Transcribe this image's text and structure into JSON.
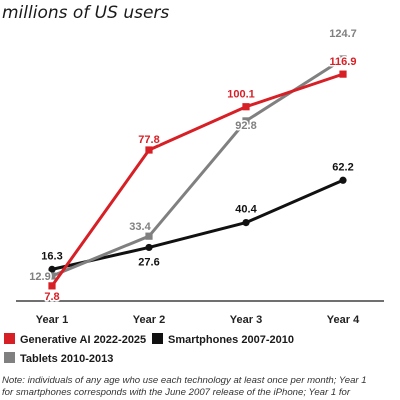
{
  "chart_data": {
    "type": "line",
    "title": "",
    "subtitle": "millions of US users",
    "xlabel": "",
    "ylabel": "",
    "categories": [
      "Year 1",
      "Year 2",
      "Year 3",
      "Year 4"
    ],
    "ylim": [
      0,
      135
    ],
    "grid": false,
    "legend_placement": "bottom",
    "series": [
      {
        "name": "Generative AI 2022-2025",
        "values": [
          7.8,
          77.8,
          100.1,
          116.9
        ],
        "color": "#d71f26"
      },
      {
        "name": "Tablets 2010-2013",
        "values": [
          12.9,
          33.4,
          92.8,
          124.7
        ],
        "color": "#808080"
      },
      {
        "name": "Smartphones 2007-2010",
        "values": [
          16.3,
          27.6,
          40.4,
          62.2
        ],
        "color": "#111111"
      }
    ],
    "data_labels": [
      [
        "7.8",
        "77.8",
        "100.1",
        "116.9"
      ],
      [
        "12.9",
        "33.4",
        "92.8",
        "124.7"
      ],
      [
        "16.3",
        "27.6",
        "40.4",
        "62.2"
      ]
    ],
    "note_lines": [
      "Note: individuals of any age who use each technology at least once per month; Year 1",
      "for smartphones corresponds with the June 2007 release of the iPhone; Year 1 for"
    ]
  }
}
